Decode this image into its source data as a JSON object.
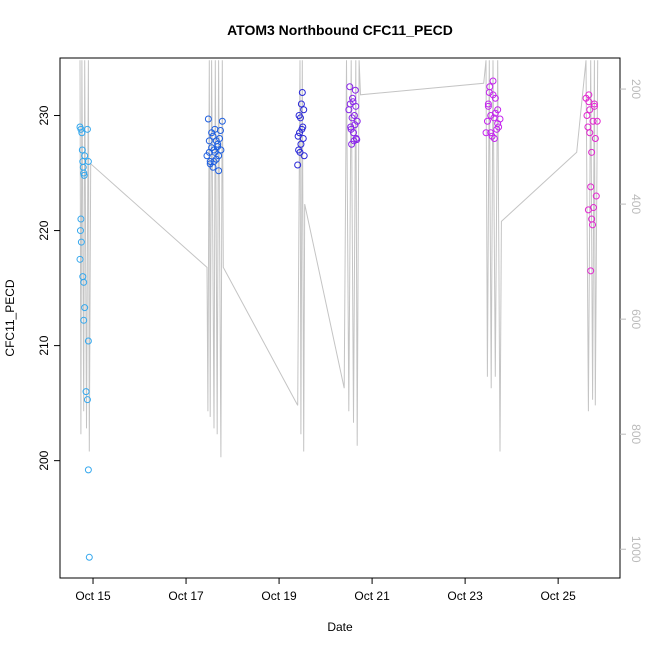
{
  "chart_data": {
    "type": "scatter",
    "title": "ATOM3 Northbound CFC11_PECD",
    "xlabel": "Date",
    "ylabel": "CFC11_PECD",
    "xlim": [
      14.29,
      26.33
    ],
    "xticks": [
      {
        "value": 15,
        "label": "Oct 15"
      },
      {
        "value": 17,
        "label": "Oct 17"
      },
      {
        "value": 19,
        "label": "Oct 19"
      },
      {
        "value": 21,
        "label": "Oct 21"
      },
      {
        "value": 23,
        "label": "Oct 23"
      },
      {
        "value": 25,
        "label": "Oct 25"
      }
    ],
    "ylim": [
      189.8,
      235.0
    ],
    "yticks": [
      200,
      210,
      220,
      230
    ],
    "y2lim": [
      1050,
      146
    ],
    "y2ticks": [
      200,
      400,
      600,
      800,
      1000
    ],
    "y2_color": "#bbbbbb",
    "series": [
      {
        "type": "line",
        "axis": "y2",
        "color": "#c4c4c4",
        "x": [
          14.72,
          14.74,
          14.76,
          14.8,
          14.82,
          14.86,
          14.9,
          14.92,
          14.95,
          17.45,
          17.47,
          17.5,
          17.52,
          17.55,
          17.6,
          17.63,
          17.67,
          17.7,
          17.75,
          17.78,
          17.8,
          19.4,
          19.45,
          19.47,
          19.5,
          19.53,
          19.55,
          20.4,
          20.45,
          20.5,
          20.55,
          20.6,
          20.65,
          20.68,
          20.72,
          20.75,
          23.4,
          23.45,
          23.48,
          23.52,
          23.56,
          23.6,
          23.65,
          23.7,
          23.75,
          23.78,
          25.4,
          25.6,
          25.65,
          25.7,
          25.74,
          25.78,
          25.8,
          25.85
        ],
        "values": [
          150,
          800,
          150,
          760,
          150,
          790,
          150,
          830,
          330,
          510,
          760,
          150,
          770,
          150,
          790,
          150,
          800,
          150,
          840,
          150,
          510,
          750,
          150,
          800,
          150,
          830,
          400,
          720,
          150,
          760,
          150,
          780,
          150,
          820,
          150,
          210,
          190,
          150,
          700,
          150,
          720,
          150,
          700,
          150,
          830,
          430,
          310,
          150,
          760,
          150,
          740,
          150,
          750,
          150
        ]
      },
      {
        "type": "scatter",
        "color": "#35a8ee",
        "x": [
          14.72,
          14.74,
          14.76,
          14.77,
          14.78,
          14.79,
          14.8,
          14.81,
          14.82,
          14.74,
          14.73,
          14.75,
          14.72,
          14.78,
          14.8,
          14.82,
          14.8,
          14.9,
          14.85,
          14.88,
          14.9,
          14.92,
          14.88,
          14.9
        ],
        "values": [
          229,
          228.8,
          228.5,
          227,
          226,
          225.5,
          225,
          224.8,
          226.5,
          221,
          220,
          219,
          217.5,
          216,
          215.5,
          213.3,
          212.2,
          210.4,
          206,
          205.3,
          199.2,
          191.6,
          228.8,
          226
        ]
      },
      {
        "type": "scatter",
        "color": "#1e5fe0",
        "x": [
          17.45,
          17.48,
          17.5,
          17.52,
          17.55,
          17.58,
          17.6,
          17.62,
          17.65,
          17.68,
          17.7,
          17.72,
          17.75,
          17.78,
          17.5,
          17.55,
          17.6,
          17.65,
          17.7,
          17.52,
          17.58,
          17.62,
          17.68,
          17.74
        ],
        "values": [
          226.5,
          229.7,
          227.8,
          226,
          228.5,
          225.5,
          227,
          228.8,
          226.2,
          227.5,
          225.2,
          228,
          227,
          229.5,
          226.8,
          227.2,
          226,
          227.8,
          226.5,
          225.8,
          228.2,
          226.8,
          227.3,
          228.7
        ]
      },
      {
        "type": "scatter",
        "color": "#2a28d8",
        "x": [
          19.4,
          19.42,
          19.44,
          19.46,
          19.48,
          19.5,
          19.52,
          19.54,
          19.43,
          19.47,
          19.51,
          19.45,
          19.49,
          19.53,
          19.41
        ],
        "values": [
          225.7,
          227,
          228.5,
          229.8,
          231,
          232,
          228,
          226.5,
          230,
          227.5,
          229,
          226.8,
          228.8,
          230.5,
          228.2
        ]
      },
      {
        "type": "scatter",
        "color": "#8a25ea",
        "x": [
          20.5,
          20.52,
          20.54,
          20.56,
          20.58,
          20.6,
          20.62,
          20.64,
          20.66,
          20.68,
          20.53,
          20.57,
          20.61,
          20.65,
          20.55,
          20.59,
          20.63,
          20.67
        ],
        "values": [
          230.5,
          232.5,
          229,
          227.5,
          231.5,
          228.5,
          230,
          232.2,
          228,
          229.5,
          231,
          229.8,
          227.8,
          230.8,
          228.8,
          231.2,
          229.2,
          227.9
        ]
      },
      {
        "type": "scatter",
        "color": "#c424ee",
        "x": [
          23.45,
          23.48,
          23.5,
          23.52,
          23.55,
          23.58,
          23.6,
          23.62,
          23.65,
          23.68,
          23.7,
          23.72,
          23.75,
          23.5,
          23.55,
          23.6,
          23.65,
          23.7,
          23.53,
          23.63
        ],
        "values": [
          228.5,
          229.5,
          231,
          232,
          230,
          228.2,
          233,
          229.8,
          231.5,
          228.8,
          230.5,
          229,
          229.7,
          230.8,
          228.5,
          231.8,
          230.2,
          229.3,
          232.5,
          228
        ]
      },
      {
        "type": "scatter",
        "color": "#e226d0",
        "x": [
          25.6,
          25.62,
          25.64,
          25.66,
          25.68,
          25.7,
          25.72,
          25.74,
          25.76,
          25.78,
          25.8,
          25.82,
          25.65,
          25.7,
          25.75,
          25.68,
          25.72,
          25.78,
          25.84,
          25.66
        ],
        "values": [
          231.5,
          230,
          229,
          231.8,
          228.5,
          223.8,
          221,
          220.5,
          222,
          230.8,
          228,
          223,
          221.8,
          216.5,
          229.5,
          230.5,
          226.8,
          231,
          229.5,
          231.2
        ]
      }
    ]
  }
}
